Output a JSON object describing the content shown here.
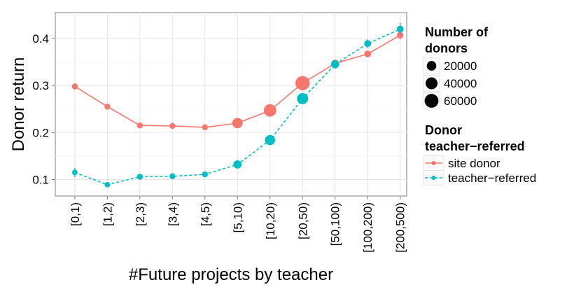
{
  "chart_data": {
    "type": "line",
    "xlabel": "#Future projects by teacher",
    "ylabel": "Donor return",
    "categories": [
      "[0,1)",
      "[1,2)",
      "[2,3)",
      "[3,4)",
      "[4,5)",
      "[5,10)",
      "[10,20)",
      "[20,50)",
      "[50,100)",
      "[100,200)",
      "[200,500)"
    ],
    "ylim": [
      0.065,
      0.455
    ],
    "yticks": [
      0.1,
      0.2,
      0.3,
      0.4
    ],
    "ytick_labels": [
      "0.1",
      "0.2",
      "0.3",
      "0.4"
    ],
    "grid": true,
    "legend_placement": "right",
    "series": [
      {
        "name": "site donor",
        "color": "#F8766D",
        "line_style": "solid",
        "values": [
          0.298,
          0.255,
          0.215,
          0.214,
          0.211,
          0.22,
          0.247,
          0.305,
          0.347,
          0.367,
          0.407
        ],
        "donors": [
          3000,
          3000,
          3000,
          3000,
          3000,
          26000,
          45000,
          65000,
          9000,
          6000,
          5000
        ],
        "error": [
          0.007,
          0.005,
          0.004,
          0.004,
          0.004,
          0.003,
          0.003,
          0.003,
          0.004,
          0.006,
          0.009
        ]
      },
      {
        "name": "teacher-referred",
        "color": "#00BFC4",
        "line_style": "dashed",
        "values": [
          0.115,
          0.089,
          0.106,
          0.107,
          0.111,
          0.132,
          0.184,
          0.272,
          0.345,
          0.389,
          0.42
        ],
        "donors": [
          2000,
          2000,
          3000,
          3000,
          3000,
          12000,
          24000,
          32000,
          12000,
          6000,
          6000
        ],
        "error": [
          0.01,
          0.004,
          0.004,
          0.004,
          0.004,
          0.003,
          0.003,
          0.003,
          0.004,
          0.009,
          0.013
        ]
      }
    ],
    "legends": {
      "size": {
        "title_line1": "Number of",
        "title_line2": "donors",
        "entries": [
          {
            "label": "20000",
            "value": 20000
          },
          {
            "label": "40000",
            "value": 40000
          },
          {
            "label": "60000",
            "value": 60000
          }
        ]
      },
      "color": {
        "title_line1": "Donor",
        "title_line2": "teacher−referred",
        "entries": [
          {
            "label": "site donor",
            "series": 0
          },
          {
            "label": "teacher−referred",
            "series": 1
          }
        ]
      }
    }
  }
}
